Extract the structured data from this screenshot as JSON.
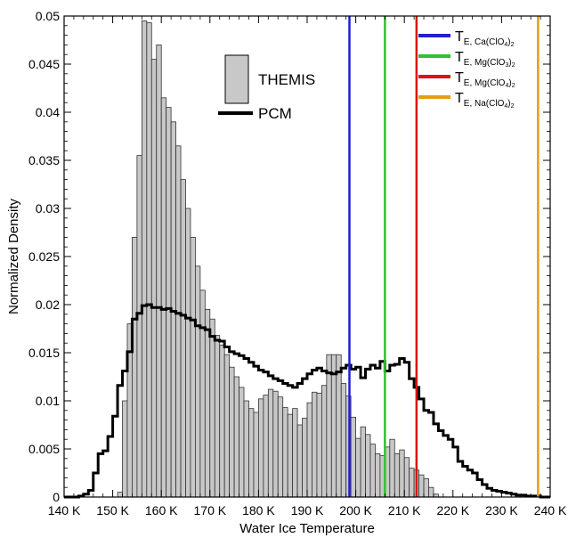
{
  "chart_data": {
    "type": "bar",
    "xlabel": "Water Ice Temperature",
    "ylabel": "Normalized Density",
    "xlim": [
      140,
      240
    ],
    "ylim": [
      0,
      0.05
    ],
    "x_ticks": [
      {
        "value": 140,
        "label": "140 K"
      },
      {
        "value": 150,
        "label": "150 K"
      },
      {
        "value": 160,
        "label": "160 K"
      },
      {
        "value": 170,
        "label": "170 K"
      },
      {
        "value": 180,
        "label": "180 K"
      },
      {
        "value": 190,
        "label": "190 K"
      },
      {
        "value": 200,
        "label": "200 K"
      },
      {
        "value": 210,
        "label": "210 K"
      },
      {
        "value": 220,
        "label": "220 K"
      },
      {
        "value": 230,
        "label": "230 K"
      },
      {
        "value": 240,
        "label": "240 K"
      }
    ],
    "y_ticks": [
      {
        "value": 0,
        "label": "0"
      },
      {
        "value": 0.005,
        "label": "0.005"
      },
      {
        "value": 0.01,
        "label": "0.01"
      },
      {
        "value": 0.015,
        "label": "0.015"
      },
      {
        "value": 0.02,
        "label": "0.02"
      },
      {
        "value": 0.025,
        "label": "0.025"
      },
      {
        "value": 0.03,
        "label": "0.03"
      },
      {
        "value": 0.035,
        "label": "0.035"
      },
      {
        "value": 0.04,
        "label": "0.04"
      },
      {
        "value": 0.045,
        "label": "0.045"
      },
      {
        "value": 0.05,
        "label": "0.05"
      }
    ],
    "bin_width": 1,
    "themis": {
      "name": "THEMIS",
      "color": "#c8c8c8",
      "bins_start": [
        151,
        152,
        153,
        154,
        155,
        156,
        157,
        158,
        159,
        160,
        161,
        162,
        163,
        164,
        165,
        166,
        167,
        168,
        169,
        170,
        171,
        172,
        173,
        174,
        175,
        176,
        177,
        178,
        179,
        180,
        181,
        182,
        183,
        184,
        185,
        186,
        187,
        188,
        189,
        190,
        191,
        192,
        193,
        194,
        195,
        196,
        197,
        198,
        199,
        200,
        201,
        202,
        203,
        204,
        205,
        206,
        207,
        208,
        209,
        210,
        211,
        212,
        213,
        214,
        215,
        216
      ],
      "values": [
        0.0005,
        0.01,
        0.018,
        0.027,
        0.0355,
        0.0495,
        0.0493,
        0.0455,
        0.047,
        0.0415,
        0.0405,
        0.039,
        0.0365,
        0.033,
        0.03,
        0.027,
        0.024,
        0.0215,
        0.0195,
        0.0185,
        0.0168,
        0.0158,
        0.0148,
        0.0135,
        0.0125,
        0.0114,
        0.01,
        0.0092,
        0.0088,
        0.0102,
        0.0106,
        0.0112,
        0.011,
        0.0104,
        0.0093,
        0.0086,
        0.0092,
        0.0075,
        0.0082,
        0.0098,
        0.0109,
        0.0108,
        0.0116,
        0.0148,
        0.0148,
        0.0148,
        0.0118,
        0.0105,
        0.0083,
        0.0061,
        0.0073,
        0.0065,
        0.0055,
        0.0045,
        0.0043,
        0.0052,
        0.006,
        0.0045,
        0.0049,
        0.0041,
        0.003,
        0.0028,
        0.0023,
        0.0019,
        0.001,
        0.0003
      ]
    },
    "pcm": {
      "name": "PCM",
      "color": "#000000",
      "bins_start": [
        140,
        141,
        142,
        143,
        144,
        145,
        146,
        147,
        148,
        149,
        150,
        151,
        152,
        153,
        154,
        155,
        156,
        157,
        158,
        159,
        160,
        161,
        162,
        163,
        164,
        165,
        166,
        167,
        168,
        169,
        170,
        171,
        172,
        173,
        174,
        175,
        176,
        177,
        178,
        179,
        180,
        181,
        182,
        183,
        184,
        185,
        186,
        187,
        188,
        189,
        190,
        191,
        192,
        193,
        194,
        195,
        196,
        197,
        198,
        199,
        200,
        201,
        202,
        203,
        204,
        205,
        206,
        207,
        208,
        209,
        210,
        211,
        212,
        213,
        214,
        215,
        216,
        217,
        218,
        219,
        220,
        221,
        222,
        223,
        224,
        225,
        226,
        227,
        228,
        229,
        230,
        231,
        232,
        233,
        234,
        235,
        236,
        237,
        238,
        239
      ],
      "values": [
        0,
        0,
        0,
        0.0001,
        0.0003,
        0.0007,
        0.0025,
        0.0045,
        0.0048,
        0.0063,
        0.0084,
        0.0116,
        0.0131,
        0.0151,
        0.0185,
        0.0191,
        0.0199,
        0.02,
        0.0197,
        0.0197,
        0.0195,
        0.0196,
        0.0193,
        0.0191,
        0.0189,
        0.0186,
        0.0184,
        0.0178,
        0.0176,
        0.0174,
        0.0167,
        0.0163,
        0.0162,
        0.0156,
        0.0151,
        0.0149,
        0.0147,
        0.0144,
        0.014,
        0.0136,
        0.0132,
        0.013,
        0.0126,
        0.0123,
        0.0121,
        0.0118,
        0.0116,
        0.0114,
        0.0118,
        0.0123,
        0.0128,
        0.0132,
        0.0134,
        0.0131,
        0.0129,
        0.0128,
        0.013,
        0.0134,
        0.0137,
        0.0133,
        0.0135,
        0.0124,
        0.0133,
        0.0137,
        0.0134,
        0.0141,
        0.0131,
        0.0137,
        0.0138,
        0.0144,
        0.014,
        0.0123,
        0.0114,
        0.0102,
        0.009,
        0.0088,
        0.0076,
        0.0069,
        0.0064,
        0.006,
        0.0052,
        0.0037,
        0.0032,
        0.0028,
        0.0025,
        0.0018,
        0.0013,
        0.0009,
        0.0007,
        0.0006,
        0.0005,
        0.0004,
        0.0003,
        0.0002,
        0.0002,
        0.0001,
        0.0001,
        0.0001,
        0,
        0
      ]
    },
    "eutectic_lines": [
      {
        "name": "T",
        "sub": "E, Ca(ClO",
        "sub2": "4",
        "sub3": ")",
        "sub4": "2",
        "temperature": 198.7,
        "color": "#2020d0"
      },
      {
        "name": "T",
        "sub": "E, Mg(ClO",
        "sub2": "3",
        "sub3": ")",
        "sub4": "2",
        "temperature": 206.0,
        "color": "#30c030"
      },
      {
        "name": "T",
        "sub": "E, Mg(ClO",
        "sub2": "4",
        "sub3": ")",
        "sub4": "2",
        "temperature": 212.5,
        "color": "#e01010"
      },
      {
        "name": "T",
        "sub": "E, Na(ClO",
        "sub2": "4",
        "sub3": ")",
        "sub4": "2",
        "temperature": 237.5,
        "color": "#e0a010"
      }
    ],
    "grid": false,
    "legend_position": "top"
  }
}
